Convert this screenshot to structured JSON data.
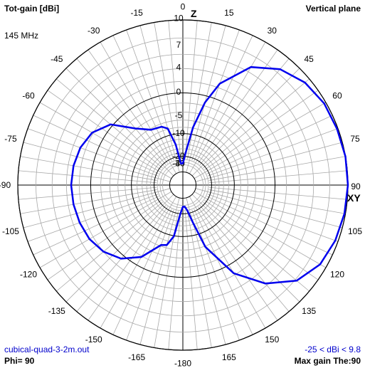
{
  "header": {
    "title": "Tot-gain [dBi]",
    "plane": "Vertical plane",
    "frequency": "145 MHz"
  },
  "footer": {
    "filename": "cubical-quad-3-2m.out",
    "phi": "Phi= 90",
    "range": "-25 < dBi < 9.8",
    "max_gain": "Max gain The:90"
  },
  "axis_labels": {
    "top": "Z",
    "right": "XY"
  },
  "colors": {
    "trace": "#0000ee",
    "grid": "#a8a8a8",
    "ring": "#000000",
    "background": "#ffffff"
  },
  "chart_data": {
    "type": "polar",
    "angle_unit": "degrees (theta from zenith Z)",
    "angle_ticks": [
      0,
      15,
      30,
      45,
      60,
      75,
      90,
      105,
      120,
      135,
      150,
      165,
      -180,
      -165,
      -150,
      -135,
      -120,
      -105,
      -90,
      -75,
      -60,
      -45,
      -30,
      -15
    ],
    "radial_ticks": [
      10,
      7,
      4,
      0,
      -5,
      -10,
      -20,
      -30,
      -40
    ],
    "radial_unit": "dBi",
    "range_min": -25,
    "range_max": 9.8,
    "grid": true,
    "series": [
      {
        "theta": [
          0,
          5,
          10,
          15,
          20,
          30,
          40,
          50,
          60,
          70,
          80,
          90,
          100,
          110,
          120,
          130,
          140,
          150,
          160,
          165,
          170,
          175,
          180,
          185,
          190,
          195,
          200,
          210,
          220,
          230,
          240,
          250,
          260,
          270,
          280,
          290,
          300,
          310,
          320,
          330,
          340,
          345,
          350,
          355,
          360
        ],
        "gain": [
          -25,
          -18,
          -8,
          -1.5,
          2.5,
          6.5,
          8.3,
          9.2,
          9.6,
          9.7,
          9.8,
          9.8,
          9.7,
          9.5,
          9.1,
          8.0,
          5.5,
          1.5,
          -6,
          -15,
          -22,
          -25,
          -25,
          -20,
          -10,
          -7,
          -6.5,
          -2.0,
          0.5,
          1.8,
          2.5,
          2.8,
          3.0,
          3.1,
          3.0,
          2.7,
          2.0,
          0.2,
          -4,
          -6.5,
          -7,
          -8,
          -14,
          -25,
          -25
        ]
      }
    ]
  }
}
